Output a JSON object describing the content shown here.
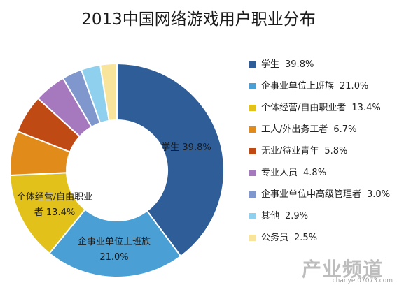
{
  "chart_data": {
    "type": "pie",
    "title": "2013中国网络游戏用户职业分布",
    "series": [
      {
        "name": "学生",
        "value": 39.8,
        "value_label": "39.8%",
        "color": "#2e5d97"
      },
      {
        "name": "企事业单位上班族",
        "value": 21.0,
        "value_label": "21.0%",
        "color": "#4a9fd4"
      },
      {
        "name": "个体经营/自由职业者",
        "value": 13.4,
        "value_label": "13.4%",
        "color": "#e2c21a"
      },
      {
        "name": "工人/外出务工者",
        "value": 6.7,
        "value_label": "6.7%",
        "color": "#e08b1a"
      },
      {
        "name": "无业/待业青年",
        "value": 5.8,
        "value_label": "5.8%",
        "color": "#c04a14"
      },
      {
        "name": "专业人员",
        "value": 4.8,
        "value_label": "4.8%",
        "color": "#a679bf"
      },
      {
        "name": "企事业单位中高级管理者",
        "value": 3.0,
        "value_label": "3.0%",
        "color": "#7f97cc"
      },
      {
        "name": "其他",
        "value": 2.9,
        "value_label": "2.9%",
        "color": "#8ed0ee"
      },
      {
        "name": "公务员",
        "value": 2.5,
        "value_label": "2.5%",
        "color": "#f8e49a"
      }
    ],
    "data_labels": [
      {
        "lines": [
          "学生 39.8%"
        ]
      },
      {
        "lines": [
          "企事业单位上班族",
          "21.0%"
        ]
      },
      {
        "lines": [
          "个体经营/自由职业",
          "者 13.4%"
        ]
      }
    ],
    "legend_position": "right",
    "donut": true
  },
  "watermark": {
    "main": "产业频道",
    "url": "chanye.07073.com"
  }
}
